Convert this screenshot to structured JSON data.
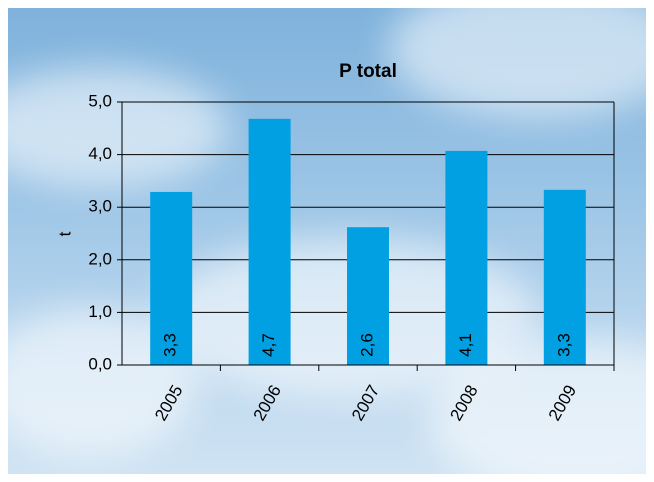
{
  "chart_data": {
    "type": "bar",
    "title": "P total",
    "y_label": "t",
    "categories": [
      "2005",
      "2006",
      "2007",
      "2008",
      "2009"
    ],
    "values": [
      3.29,
      4.68,
      2.62,
      4.07,
      3.33
    ],
    "value_labels": [
      "3,3",
      "4,7",
      "2,6",
      "4,1",
      "3,3"
    ],
    "color": "#00a0e3",
    "ylim": [
      0,
      5
    ],
    "yticks": [
      {
        "value": 0,
        "label": "0,0"
      },
      {
        "value": 1,
        "label": "1,0"
      },
      {
        "value": 2,
        "label": "2,0"
      },
      {
        "value": 3,
        "label": "3,0"
      },
      {
        "value": 4,
        "label": "4,0"
      },
      {
        "value": 5,
        "label": "5,0"
      }
    ],
    "grid": true
  }
}
